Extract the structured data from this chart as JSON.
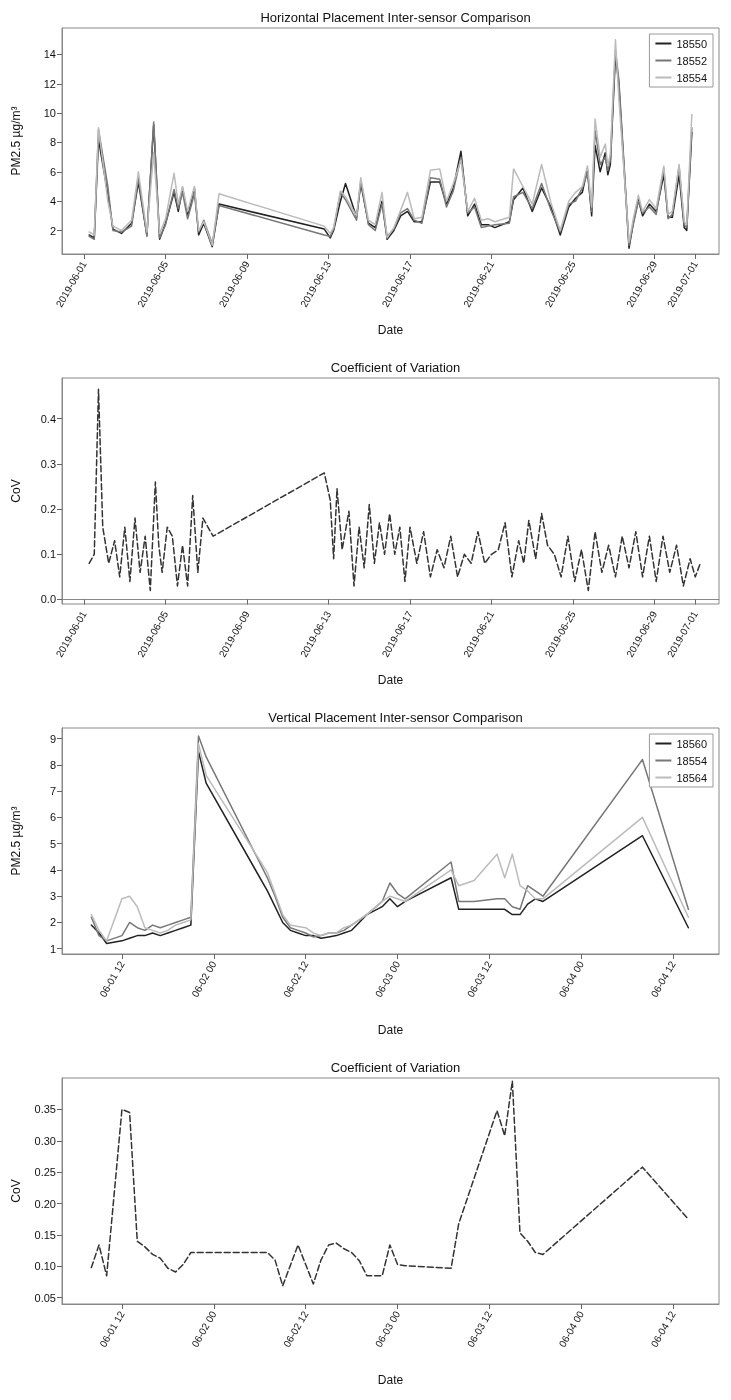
{
  "chart_data": [
    {
      "type": "line",
      "title": "Horizontal Placement Inter-sensor Comparison",
      "xlabel": "Date",
      "ylabel": "PM2.5 µg/m³",
      "legend": "top right",
      "marker": "none",
      "line_style": "solid",
      "x": [
        "2019-06-01T06:00",
        "2019-06-01T12:00",
        "2019-06-01T17:00",
        "2019-06-02T04:00",
        "2019-06-02T10:00",
        "2019-06-02T20:00",
        "2019-06-03T08:00",
        "2019-06-03T16:00",
        "2019-06-04T02:00",
        "2019-06-04T10:00",
        "2019-06-04T17:00",
        "2019-06-05T00:00",
        "2019-06-05T10:00",
        "2019-06-05T15:00",
        "2019-06-05T20:00",
        "2019-06-06T02:00",
        "2019-06-06T10:00",
        "2019-06-06T15:00",
        "2019-06-06T21:00",
        "2019-06-07T07:00",
        "2019-06-07T15:00",
        "2019-06-12T19:00",
        "2019-06-13T02:00",
        "2019-06-13T06:00",
        "2019-06-13T14:00",
        "2019-06-13T20:00",
        "2019-06-14T09:00",
        "2019-06-14T14:00",
        "2019-06-14T23:00",
        "2019-06-15T07:00",
        "2019-06-15T15:00",
        "2019-06-15T21:00",
        "2019-06-16T05:00",
        "2019-06-16T13:00",
        "2019-06-16T21:00",
        "2019-06-17T05:00",
        "2019-06-17T14:00",
        "2019-06-18T00:00",
        "2019-06-18T11:00",
        "2019-06-18T19:00",
        "2019-06-19T03:00",
        "2019-06-19T12:00",
        "2019-06-19T20:00",
        "2019-06-20T04:00",
        "2019-06-20T12:00",
        "2019-06-20T20:00",
        "2019-06-21T04:00",
        "2019-06-21T21:00",
        "2019-06-22T02:00",
        "2019-06-22T13:00",
        "2019-06-23T00:00",
        "2019-06-23T11:00",
        "2019-06-23T22:00",
        "2019-06-24T09:00",
        "2019-06-24T19:00",
        "2019-06-25T03:00",
        "2019-06-25T11:00",
        "2019-06-25T17:00",
        "2019-06-25T22:00",
        "2019-06-26T02:00",
        "2019-06-26T08:00",
        "2019-06-26T14:00",
        "2019-06-26T17:00",
        "2019-06-26T20:00",
        "2019-06-27T02:00",
        "2019-06-27T06:00",
        "2019-06-27T18:00",
        "2019-06-27T23:00",
        "2019-06-28T05:00",
        "2019-06-28T10:00",
        "2019-06-28T18:00",
        "2019-06-29T02:00",
        "2019-06-29T11:00",
        "2019-06-29T16:00",
        "2019-06-29T21:00",
        "2019-06-30T05:00",
        "2019-06-30T11:00",
        "2019-06-30T14:00",
        "2019-06-30T20:00"
      ],
      "series": [
        {
          "name": "18550",
          "color": "#222222",
          "values": [
            1.7,
            1.5,
            8.2,
            4.5,
            2.1,
            1.8,
            2.5,
            5.3,
            1.7,
            9.2,
            1.4,
            2.5,
            4.6,
            3.3,
            4.9,
            3.0,
            4.9,
            1.7,
            2.5,
            0.9,
            3.8,
            2.1,
            1.5,
            2.0,
            4.0,
            5.2,
            2.9,
            5.2,
            2.5,
            2.2,
            4.0,
            1.4,
            2.0,
            3.0,
            3.3,
            2.6,
            2.6,
            5.3,
            5.3,
            3.8,
            4.9,
            7.4,
            3.0,
            3.8,
            2.4,
            2.4,
            2.2,
            2.6,
            4.1,
            4.9,
            3.3,
            4.9,
            3.6,
            1.7,
            3.6,
            4.2,
            4.6,
            6.2,
            3.0,
            7.8,
            6.0,
            7.3,
            5.8,
            6.5,
            13.9,
            12.0,
            0.8,
            2.5,
            4.1,
            3.0,
            3.8,
            3.3,
            5.8,
            2.9,
            2.9,
            5.8,
            2.2,
            2.0,
            8.7
          ]
        },
        {
          "name": "18552",
          "color": "#777777",
          "values": [
            1.6,
            1.4,
            8.9,
            5.0,
            2.0,
            1.9,
            2.3,
            5.6,
            1.6,
            9.4,
            1.5,
            2.4,
            4.8,
            3.5,
            4.6,
            2.8,
            4.5,
            1.9,
            2.7,
            1.1,
            3.7,
            1.7,
            1.6,
            2.1,
            4.6,
            4.1,
            2.7,
            5.4,
            2.4,
            2.0,
            3.8,
            1.6,
            2.1,
            3.2,
            3.5,
            2.7,
            2.5,
            5.6,
            5.5,
            3.6,
            4.7,
            7.0,
            3.2,
            3.6,
            2.2,
            2.3,
            2.4,
            2.5,
            4.3,
            4.6,
            3.5,
            5.2,
            3.4,
            1.9,
            3.8,
            4.0,
            4.9,
            5.9,
            3.3,
            8.8,
            6.5,
            7.0,
            6.1,
            6.8,
            14.3,
            12.3,
            1.0,
            2.4,
            4.0,
            3.2,
            3.6,
            3.1,
            6.2,
            2.8,
            3.1,
            6.4,
            2.4,
            2.2,
            9.0
          ]
        },
        {
          "name": "18554",
          "color": "#bbbbbb",
          "values": [
            1.9,
            1.7,
            9.0,
            4.0,
            2.3,
            2.0,
            2.7,
            6.0,
            1.9,
            7.3,
            1.8,
            2.8,
            5.9,
            3.8,
            5.0,
            3.3,
            5.0,
            2.0,
            2.6,
            1.0,
            4.5,
            2.3,
            1.8,
            2.2,
            4.7,
            4.3,
            3.0,
            5.6,
            2.7,
            2.4,
            4.6,
            1.5,
            2.2,
            3.4,
            4.6,
            2.8,
            2.9,
            6.1,
            6.2,
            4.0,
            5.2,
            6.8,
            3.3,
            4.2,
            2.7,
            2.8,
            2.6,
            2.9,
            6.2,
            5.0,
            3.8,
            6.5,
            3.9,
            2.0,
            4.0,
            4.6,
            5.0,
            6.4,
            3.6,
            9.6,
            7.0,
            7.9,
            6.4,
            7.2,
            15.0,
            11.0,
            1.2,
            2.8,
            4.4,
            3.3,
            4.1,
            3.5,
            6.4,
            3.1,
            3.3,
            6.5,
            2.6,
            2.4,
            9.9
          ]
        }
      ],
      "xlim": [
        "2019-05-30T22:00",
        "2019-07-02T04:00"
      ],
      "xticks": [
        "2019-06-01",
        "2019-06-05",
        "2019-06-09",
        "2019-06-13",
        "2019-06-17",
        "2019-06-21",
        "2019-06-25",
        "2019-06-29",
        "2019-07-01"
      ],
      "ylim": [
        0.4,
        15.8
      ],
      "yticks": [
        2,
        4,
        6,
        8,
        10,
        12,
        14
      ]
    },
    {
      "type": "line",
      "title": "Coefficient of Variation",
      "xlabel": "Date",
      "ylabel": "CoV",
      "marker": "none",
      "line_style": "dashed",
      "x": [
        "2019-06-01T06:00",
        "2019-06-01T12:00",
        "2019-06-01T17:00",
        "2019-06-01T22:00",
        "2019-06-02T05:00",
        "2019-06-02T12:00",
        "2019-06-02T18:00",
        "2019-06-03T00:00",
        "2019-06-03T06:00",
        "2019-06-03T12:00",
        "2019-06-03T18:00",
        "2019-06-04T00:00",
        "2019-06-04T06:00",
        "2019-06-04T12:00",
        "2019-06-04T16:00",
        "2019-06-04T20:00",
        "2019-06-05T02:00",
        "2019-06-05T08:00",
        "2019-06-05T14:00",
        "2019-06-05T20:00",
        "2019-06-06T02:00",
        "2019-06-06T08:00",
        "2019-06-06T14:00",
        "2019-06-06T20:00",
        "2019-06-07T08:00",
        "2019-06-12T19:00",
        "2019-06-13T02:00",
        "2019-06-13T06:00",
        "2019-06-13T10:00",
        "2019-06-13T16:00",
        "2019-06-14T00:00",
        "2019-06-14T06:00",
        "2019-06-14T12:00",
        "2019-06-14T18:00",
        "2019-06-15T00:00",
        "2019-06-15T06:00",
        "2019-06-15T12:00",
        "2019-06-15T18:00",
        "2019-06-16T00:00",
        "2019-06-16T06:00",
        "2019-06-16T12:00",
        "2019-06-16T18:00",
        "2019-06-17T00:00",
        "2019-06-17T08:00",
        "2019-06-17T16:00",
        "2019-06-18T00:00",
        "2019-06-18T08:00",
        "2019-06-18T16:00",
        "2019-06-19T00:00",
        "2019-06-19T08:00",
        "2019-06-19T16:00",
        "2019-06-20T00:00",
        "2019-06-20T08:00",
        "2019-06-20T16:00",
        "2019-06-21T00:00",
        "2019-06-21T08:00",
        "2019-06-21T16:00",
        "2019-06-22T00:00",
        "2019-06-22T08:00",
        "2019-06-22T14:00",
        "2019-06-22T20:00",
        "2019-06-23T04:00",
        "2019-06-23T11:00",
        "2019-06-23T18:00",
        "2019-06-24T02:00",
        "2019-06-24T10:00",
        "2019-06-24T18:00",
        "2019-06-25T02:00",
        "2019-06-25T10:00",
        "2019-06-25T18:00",
        "2019-06-26T02:00",
        "2019-06-26T10:00",
        "2019-06-26T18:00",
        "2019-06-27T02:00",
        "2019-06-27T10:00",
        "2019-06-27T18:00",
        "2019-06-28T02:00",
        "2019-06-28T10:00",
        "2019-06-28T18:00",
        "2019-06-29T02:00",
        "2019-06-29T10:00",
        "2019-06-29T18:00",
        "2019-06-30T02:00",
        "2019-06-30T10:00",
        "2019-06-30T18:00",
        "2019-07-01T00:00",
        "2019-07-01T06:00"
      ],
      "series": [
        {
          "color": "#333333",
          "values": [
            0.08,
            0.1,
            0.465,
            0.16,
            0.08,
            0.13,
            0.05,
            0.16,
            0.04,
            0.18,
            0.06,
            0.14,
            0.02,
            0.26,
            0.12,
            0.06,
            0.16,
            0.14,
            0.03,
            0.12,
            0.03,
            0.23,
            0.06,
            0.18,
            0.14,
            0.28,
            0.22,
            0.09,
            0.245,
            0.11,
            0.195,
            0.03,
            0.16,
            0.07,
            0.21,
            0.08,
            0.17,
            0.1,
            0.19,
            0.1,
            0.16,
            0.04,
            0.16,
            0.08,
            0.15,
            0.05,
            0.11,
            0.07,
            0.14,
            0.05,
            0.1,
            0.08,
            0.15,
            0.08,
            0.1,
            0.11,
            0.17,
            0.05,
            0.13,
            0.08,
            0.175,
            0.09,
            0.19,
            0.12,
            0.1,
            0.05,
            0.14,
            0.04,
            0.11,
            0.02,
            0.15,
            0.06,
            0.12,
            0.05,
            0.14,
            0.07,
            0.15,
            0.05,
            0.14,
            0.04,
            0.14,
            0.06,
            0.12,
            0.03,
            0.09,
            0.05,
            0.08
          ]
        }
      ],
      "xlim": [
        "2019-05-30T22:00",
        "2019-07-02T04:00"
      ],
      "xticks": [
        "2019-06-01",
        "2019-06-05",
        "2019-06-09",
        "2019-06-13",
        "2019-06-17",
        "2019-06-21",
        "2019-06-25",
        "2019-06-29",
        "2019-07-01"
      ],
      "ylim": [
        -0.01,
        0.49
      ],
      "yticks": [
        {
          "value": 0,
          "label": "0.0"
        },
        0.1,
        0.2,
        0.3,
        0.4
      ]
    },
    {
      "type": "line",
      "title": "Vertical Placement Inter-sensor Comparison",
      "xlabel": "Date",
      "ylabel": "PM2.5 µg/m³",
      "legend": "top right",
      "marker": "none",
      "line_style": "solid",
      "x": [
        "--06-01T08:00",
        "--06-01T09:00",
        "--06-01T10:00",
        "--06-01T12:00",
        "--06-01T13:00",
        "--06-01T14:00",
        "--06-01T15:00",
        "--06-01T16:00",
        "--06-01T17:00",
        "--06-01T18:00",
        "--06-01T19:00",
        "--06-01T20:00",
        "--06-01T21:00",
        "--06-01T22:00",
        "--06-01T23:00",
        "--06-02T07:00",
        "--06-02T08:00",
        "--06-02T09:00",
        "--06-02T10:00",
        "--06-02T11:00",
        "--06-02T12:00",
        "--06-02T13:00",
        "--06-02T14:00",
        "--06-02T15:00",
        "--06-02T16:00",
        "--06-02T17:00",
        "--06-02T18:00",
        "--06-02T19:00",
        "--06-02T20:00",
        "--06-02T22:00",
        "--06-02T23:00",
        "--06-03T00:00",
        "--06-03T01:00",
        "--06-03T07:00",
        "--06-03T08:00",
        "--06-03T10:00",
        "--06-03T13:00",
        "--06-03T14:00",
        "--06-03T15:00",
        "--06-03T16:00",
        "--06-03T17:00",
        "--06-03T18:00",
        "--06-03T19:00",
        "--06-04T08:00",
        "--06-04T14:00"
      ],
      "series": [
        {
          "name": "18560",
          "color": "#222222",
          "values": [
            1.9,
            1.6,
            1.2,
            1.3,
            1.4,
            1.5,
            1.5,
            1.6,
            1.5,
            1.6,
            1.7,
            1.8,
            1.9,
            8.5,
            7.3,
            3.2,
            2.6,
            2.0,
            1.7,
            1.6,
            1.5,
            1.5,
            1.4,
            1.45,
            1.5,
            1.6,
            1.7,
            2.0,
            2.3,
            2.6,
            2.9,
            2.6,
            2.8,
            3.7,
            2.5,
            2.5,
            2.5,
            2.5,
            2.3,
            2.3,
            2.7,
            2.9,
            2.8,
            5.3,
            1.8
          ]
        },
        {
          "name": "18554",
          "color": "#777777",
          "values": [
            2.2,
            1.5,
            1.3,
            1.5,
            2.0,
            1.8,
            1.7,
            1.9,
            1.8,
            1.9,
            2.0,
            2.1,
            2.2,
            9.1,
            8.3,
            3.7,
            3.0,
            2.2,
            1.8,
            1.7,
            1.6,
            1.45,
            1.5,
            1.6,
            1.6,
            1.7,
            1.9,
            2.1,
            2.3,
            2.8,
            3.5,
            3.1,
            2.9,
            4.3,
            2.8,
            2.8,
            2.9,
            2.9,
            2.6,
            2.5,
            3.4,
            3.2,
            3.0,
            8.2,
            2.5
          ]
        },
        {
          "name": "18564",
          "color": "#bbbbbb",
          "values": [
            2.3,
            1.7,
            1.3,
            2.9,
            3.0,
            2.6,
            1.8,
            1.7,
            1.6,
            1.7,
            1.9,
            2.0,
            2.1,
            8.8,
            7.6,
            3.9,
            3.1,
            2.3,
            1.9,
            1.85,
            1.8,
            1.6,
            1.5,
            1.6,
            1.6,
            1.8,
            1.9,
            2.1,
            2.3,
            2.8,
            3.0,
            2.9,
            2.8,
            4.0,
            3.4,
            3.6,
            4.6,
            3.7,
            4.6,
            3.4,
            3.2,
            2.9,
            2.9,
            6.0,
            2.2
          ]
        }
      ],
      "xlim": [
        "--06-01T04:10",
        "--06-04T18:00"
      ],
      "xticks": [
        {
          "value": "--06-01T12:00",
          "label": "06-01 12"
        },
        {
          "value": "--06-02T00:00",
          "label": "06-02 00"
        },
        {
          "value": "--06-02T12:00",
          "label": "06-02 12"
        },
        {
          "value": "--06-03T00:00",
          "label": "06-03 00"
        },
        {
          "value": "--06-03T12:00",
          "label": "06-03 12"
        },
        {
          "value": "--06-04T00:00",
          "label": "06-04 00"
        },
        {
          "value": "--06-04T12:00",
          "label": "06-04 12"
        }
      ],
      "ylim": [
        0.8,
        9.4
      ],
      "yticks": [
        1,
        2,
        3,
        4,
        5,
        6,
        7,
        8,
        9
      ]
    },
    {
      "type": "line",
      "title": "Coefficient of Variation",
      "xlabel": "Date",
      "ylabel": "CoV",
      "marker": "none",
      "line_style": "dashed",
      "x": [
        "--06-01T08:00",
        "--06-01T09:00",
        "--06-01T10:00",
        "--06-01T12:00",
        "--06-01T13:00",
        "--06-01T14:00",
        "--06-01T15:00",
        "--06-01T16:00",
        "--06-01T17:00",
        "--06-01T18:00",
        "--06-01T19:00",
        "--06-01T20:00",
        "--06-01T21:00",
        "--06-02T07:00",
        "--06-02T08:00",
        "--06-02T09:00",
        "--06-02T11:00",
        "--06-02T13:00",
        "--06-02T14:00",
        "--06-02T15:00",
        "--06-02T16:00",
        "--06-02T17:00",
        "--06-02T18:00",
        "--06-02T19:00",
        "--06-02T20:00",
        "--06-02T22:00",
        "--06-02T23:00",
        "--06-03T00:00",
        "--06-03T01:00",
        "--06-03T07:00",
        "--06-03T08:00",
        "--06-03T13:00",
        "--06-03T14:00",
        "--06-03T15:00",
        "--06-03T16:00",
        "--06-03T17:00",
        "--06-03T18:00",
        "--06-03T19:00",
        "--06-04T08:00",
        "--06-04T14:00"
      ],
      "series": [
        {
          "color": "#333333",
          "values": [
            0.098,
            0.134,
            0.085,
            0.35,
            0.345,
            0.14,
            0.131,
            0.119,
            0.113,
            0.097,
            0.091,
            0.103,
            0.122,
            0.122,
            0.11,
            0.069,
            0.134,
            0.072,
            0.11,
            0.134,
            0.137,
            0.128,
            0.122,
            0.109,
            0.085,
            0.085,
            0.134,
            0.103,
            0.101,
            0.097,
            0.168,
            0.348,
            0.308,
            0.395,
            0.153,
            0.14,
            0.122,
            0.119,
            0.258,
            0.175
          ]
        }
      ],
      "xlim": [
        "--06-01T04:10",
        "--06-04T18:00"
      ],
      "xticks": [
        {
          "value": "--06-01T12:00",
          "label": "06-01 12"
        },
        {
          "value": "--06-02T00:00",
          "label": "06-02 00"
        },
        {
          "value": "--06-02T12:00",
          "label": "06-02 12"
        },
        {
          "value": "--06-03T00:00",
          "label": "06-03 00"
        },
        {
          "value": "--06-03T12:00",
          "label": "06-03 12"
        },
        {
          "value": "--06-04T00:00",
          "label": "06-04 00"
        },
        {
          "value": "--06-04T12:00",
          "label": "06-04 12"
        }
      ],
      "ylim": [
        0.04,
        0.4
      ],
      "yticks": [
        0.05,
        {
          "value": 0.1,
          "label": "0.10"
        },
        0.15,
        {
          "value": 0.2,
          "label": "0.20"
        },
        0.25,
        {
          "value": 0.3,
          "label": "0.30"
        },
        0.35
      ]
    }
  ]
}
